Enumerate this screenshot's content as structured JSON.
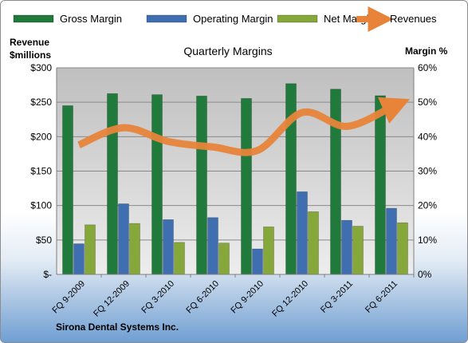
{
  "company": "Sirona Dental Systems Inc.",
  "chart_data": {
    "type": "bar",
    "title": "Quarterly Margins",
    "left_axis_label": [
      "Revenue",
      "$millions"
    ],
    "right_axis_label": "Margin %",
    "categories": [
      "FQ 9-2009",
      "FQ 12-2009",
      "FQ 3-2010",
      "FQ 6-2010",
      "FQ 9-2010",
      "FQ 12-2010",
      "FQ 3-2011",
      "FQ 6-2011"
    ],
    "left_ticks": [
      "$-",
      "$50",
      "$100",
      "$150",
      "$200",
      "$250",
      "$300"
    ],
    "right_ticks": [
      "0%",
      "10%",
      "20%",
      "30%",
      "40%",
      "50%",
      "60%"
    ],
    "left_ylim": [
      0,
      300
    ],
    "right_ylim": [
      0,
      60
    ],
    "grid": true,
    "legend_position": "top",
    "series": [
      {
        "name": "Gross Margin",
        "axis": "right",
        "kind": "bar",
        "color": "#1f7a3c",
        "values": [
          49,
          52.5,
          52.2,
          51.8,
          51.1,
          55.4,
          53.8,
          51.9
        ]
      },
      {
        "name": "Operating Margin",
        "axis": "right",
        "kind": "bar",
        "color": "#3f6fb0",
        "values": [
          8.9,
          20.5,
          15.9,
          16.5,
          7.4,
          24,
          15.7,
          19.2
        ]
      },
      {
        "name": "Net Margin",
        "axis": "right",
        "kind": "bar",
        "color": "#86a83a",
        "values": [
          14.4,
          14.8,
          9.3,
          9.1,
          13.8,
          18.2,
          14,
          15
        ]
      },
      {
        "name": "Revenues",
        "axis": "left",
        "kind": "line",
        "color": "#e8843a",
        "values": [
          188,
          213,
          193,
          185,
          180,
          235,
          215,
          243
        ]
      }
    ]
  }
}
